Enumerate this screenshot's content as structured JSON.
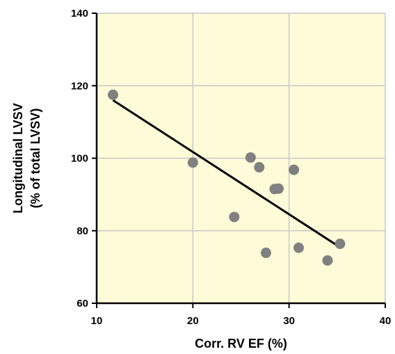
{
  "chart_data": {
    "type": "scatter",
    "xlabel": "Corr. RV EF (%)",
    "ylabel_lines": [
      "Longitudinal LVSV",
      "(% of total LVSV)"
    ],
    "xlim": [
      10,
      40
    ],
    "ylim": [
      60,
      140
    ],
    "x_ticks": [
      10,
      20,
      30,
      40
    ],
    "y_ticks": [
      60,
      80,
      100,
      120,
      140
    ],
    "grid": true,
    "plot_background": "#fdfbd8",
    "grid_color": "#c8c8c8",
    "point_color": "#808080",
    "line_color": "#000000",
    "points": [
      {
        "x": 11.7,
        "y": 117.5
      },
      {
        "x": 20.0,
        "y": 98.8
      },
      {
        "x": 24.3,
        "y": 83.8
      },
      {
        "x": 26.0,
        "y": 100.2
      },
      {
        "x": 26.9,
        "y": 97.5
      },
      {
        "x": 27.6,
        "y": 73.9
      },
      {
        "x": 28.5,
        "y": 91.5
      },
      {
        "x": 28.9,
        "y": 91.6
      },
      {
        "x": 30.5,
        "y": 96.8
      },
      {
        "x": 31.0,
        "y": 75.3
      },
      {
        "x": 34.0,
        "y": 71.8
      },
      {
        "x": 35.3,
        "y": 76.4
      }
    ],
    "trendline": {
      "x": [
        11.7,
        35.2
      ],
      "y": [
        116.0,
        75.6
      ]
    }
  }
}
